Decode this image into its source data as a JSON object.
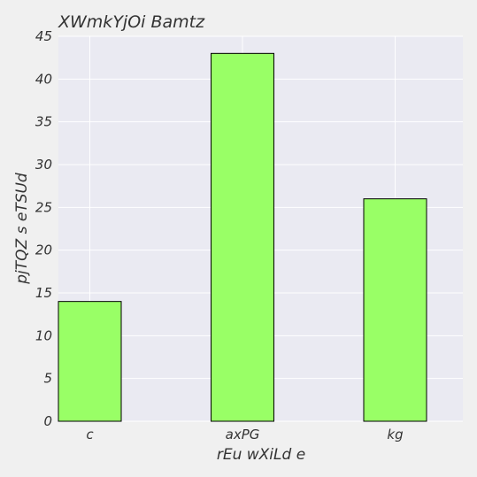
{
  "chart_data": {
    "type": "bar",
    "title": "XWmkYjOi Bamtz",
    "xlabel": "rEu  wXiLd e",
    "ylabel": "pjTQZ s eTSUd",
    "categories": [
      "c",
      "axPG",
      "kg"
    ],
    "values": [
      14,
      43,
      26
    ],
    "ylim": [
      0,
      45
    ],
    "yticks": [
      "0",
      "5",
      "10",
      "15",
      "20",
      "25",
      "30",
      "35",
      "40",
      "45"
    ],
    "grid": true,
    "colors": {
      "bar_fill": "#99ff66",
      "bar_edge": "#000000",
      "plot_background": "#eaeaf2",
      "figure_background": "#f0f0f0",
      "grid": "#ffffff",
      "text": "#333333"
    }
  }
}
